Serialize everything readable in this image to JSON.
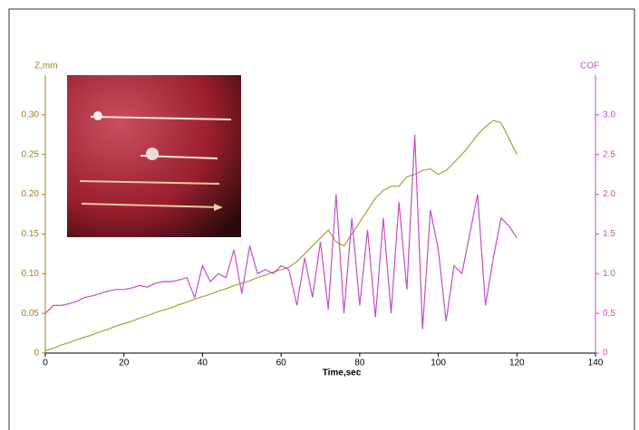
{
  "chart_data": {
    "type": "line",
    "x_label": "Time,sec",
    "y_label": "Z,mm",
    "y2_label": "COF",
    "x": [
      0,
      2,
      4,
      6,
      8,
      10,
      12,
      14,
      16,
      18,
      20,
      22,
      24,
      26,
      28,
      30,
      32,
      34,
      36,
      38,
      40,
      42,
      44,
      46,
      48,
      50,
      52,
      54,
      56,
      58,
      60,
      62,
      64,
      66,
      68,
      70,
      72,
      74,
      76,
      78,
      80,
      82,
      84,
      86,
      88,
      90,
      92,
      94,
      96,
      98,
      100,
      102,
      104,
      106,
      108,
      110,
      112,
      114,
      116,
      118,
      120
    ],
    "series": [
      {
        "name": "Z,mm",
        "color": "#a3a23c",
        "values": [
          0.003,
          0.006,
          0.01,
          0.013,
          0.017,
          0.02,
          0.023,
          0.027,
          0.03,
          0.034,
          0.037,
          0.04,
          0.044,
          0.047,
          0.051,
          0.054,
          0.057,
          0.061,
          0.064,
          0.068,
          0.071,
          0.074,
          0.078,
          0.081,
          0.085,
          0.088,
          0.091,
          0.095,
          0.098,
          0.102,
          0.105,
          0.108,
          0.115,
          0.125,
          0.135,
          0.145,
          0.155,
          0.14,
          0.135,
          0.15,
          0.165,
          0.18,
          0.195,
          0.205,
          0.21,
          0.21,
          0.222,
          0.225,
          0.23,
          0.232,
          0.225,
          0.23,
          0.24,
          0.25,
          0.262,
          0.275,
          0.285,
          0.293,
          0.29,
          0.27,
          0.25
        ]
      },
      {
        "name": "COF",
        "color": "#c24fc2",
        "axis": "y2",
        "values": [
          0.5,
          0.6,
          0.6,
          0.62,
          0.65,
          0.7,
          0.72,
          0.75,
          0.78,
          0.8,
          0.8,
          0.82,
          0.85,
          0.83,
          0.88,
          0.9,
          0.9,
          0.92,
          0.95,
          0.7,
          1.1,
          0.9,
          1.0,
          0.95,
          1.3,
          0.75,
          1.35,
          1.0,
          1.05,
          1.0,
          1.1,
          1.05,
          0.6,
          1.2,
          0.7,
          1.4,
          0.55,
          2.0,
          0.5,
          1.7,
          0.6,
          1.55,
          0.45,
          1.7,
          0.5,
          1.9,
          0.8,
          2.75,
          0.3,
          1.8,
          1.3,
          0.4,
          1.1,
          1.0,
          1.5,
          2.0,
          0.6,
          1.2,
          1.7,
          1.6,
          1.45
        ]
      }
    ],
    "xlim": [
      0,
      140
    ],
    "xticks": [
      0,
      20,
      40,
      60,
      80,
      100,
      120,
      140
    ],
    "ylim": [
      0,
      0.35
    ],
    "yticks": [
      0,
      0.05,
      {
        "value": 0.1,
        "label": "0.10"
      },
      0.15,
      {
        "value": 0.2,
        "label": "0.20"
      },
      0.25,
      {
        "value": 0.3,
        "label": "0.30"
      }
    ],
    "y2lim": [
      0,
      3.5
    ],
    "y2ticks": [
      0,
      0.5,
      {
        "value": 1,
        "label": "1.0"
      },
      1.5,
      {
        "value": 2,
        "label": "2.0"
      },
      2.5,
      {
        "value": 3,
        "label": "3.0"
      }
    ]
  }
}
